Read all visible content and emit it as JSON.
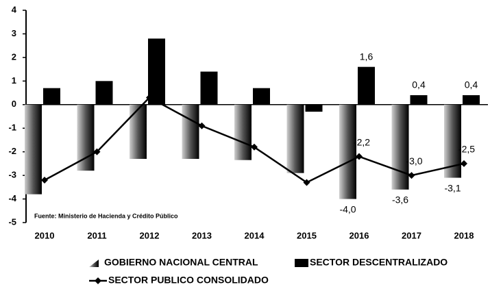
{
  "chart_data": {
    "type": "bar-line",
    "categories": [
      "2010",
      "2011",
      "2012",
      "2013",
      "2014",
      "2015",
      "2016",
      "2017",
      "2018"
    ],
    "series": [
      {
        "name": "GOBIERNO NACIONAL CENTRAL",
        "type": "bar",
        "color": "#000000",
        "values": [
          -3.8,
          -2.8,
          -2.3,
          -2.3,
          -2.35,
          -2.9,
          -4.0,
          -3.6,
          -3.1
        ],
        "value_labels": [
          null,
          null,
          null,
          null,
          null,
          null,
          "-4,0",
          "-3,6",
          "-3,1"
        ]
      },
      {
        "name": "SECTOR DESCENTRALIZADO",
        "type": "bar",
        "color": "#000000",
        "values": [
          0.7,
          1.0,
          2.8,
          1.4,
          0.7,
          -0.3,
          1.6,
          0.4,
          0.4
        ],
        "value_labels": [
          null,
          null,
          null,
          null,
          null,
          null,
          "1,6",
          "0,4",
          "0,4"
        ]
      },
      {
        "name": "SECTOR PUBLICO CONSOLIDADO",
        "type": "line",
        "color": "#000000",
        "values": [
          -3.2,
          -2.0,
          0.3,
          -0.9,
          -1.8,
          -3.3,
          -2.2,
          -3.0,
          -2.5
        ],
        "value_labels": [
          null,
          null,
          null,
          null,
          null,
          null,
          "-2,2",
          "-3,0",
          "-2,5"
        ]
      }
    ],
    "annotation": "Fuente: Ministerio de Hacienda y Crédito Público",
    "ylim": [
      -5,
      4
    ],
    "yticks": [
      -5,
      -4,
      -3,
      -2,
      -1,
      0,
      1,
      2,
      3,
      4
    ],
    "grid": false
  }
}
